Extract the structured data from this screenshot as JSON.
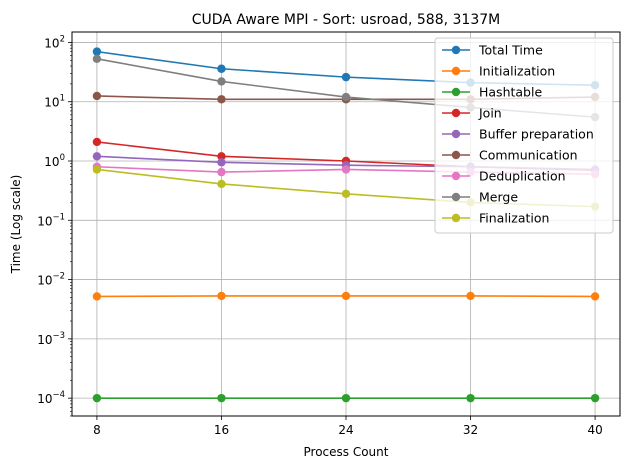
{
  "chart_data": {
    "type": "line",
    "title": "CUDA Aware MPI - Sort: usroad, 588, 3137M",
    "xlabel": "Process Count",
    "ylabel": "Time (Log scale)",
    "yscale": "log",
    "ylim": [
      5e-05,
      150
    ],
    "xlim": [
      6.4,
      41.6
    ],
    "grid": true,
    "legend_position": "top-right",
    "x": [
      8,
      16,
      24,
      32,
      40
    ],
    "x_tick_labels": [
      "8",
      "16",
      "24",
      "32",
      "40"
    ],
    "y_ticks": [
      0.0001,
      0.001,
      0.01,
      0.1,
      1,
      10,
      100
    ],
    "y_tick_labels": [
      {
        "base": "10",
        "exp": "−4"
      },
      {
        "base": "10",
        "exp": "−3"
      },
      {
        "base": "10",
        "exp": "−2"
      },
      {
        "base": "10",
        "exp": "−1"
      },
      {
        "base": "10",
        "exp": "0"
      },
      {
        "base": "10",
        "exp": "1"
      },
      {
        "base": "10",
        "exp": "2"
      }
    ],
    "series": [
      {
        "name": "Total Time",
        "color": "#1f77b4",
        "values": [
          70,
          36,
          26,
          21,
          19
        ]
      },
      {
        "name": "Initialization",
        "color": "#ff7f0e",
        "values": [
          0.0052,
          0.0053,
          0.0053,
          0.0053,
          0.0052
        ]
      },
      {
        "name": "Hashtable",
        "color": "#2ca02c",
        "values": [
          0.0001,
          0.0001,
          0.0001,
          0.0001,
          0.0001
        ]
      },
      {
        "name": "Join",
        "color": "#d62728",
        "values": [
          2.1,
          1.2,
          1.0,
          0.8,
          0.7
        ]
      },
      {
        "name": "Buffer preparation",
        "color": "#9467bd",
        "values": [
          1.2,
          0.95,
          0.85,
          0.8,
          0.72
        ]
      },
      {
        "name": "Communication",
        "color": "#8c564b",
        "values": [
          12.5,
          11,
          11,
          11,
          12
        ]
      },
      {
        "name": "Deduplication",
        "color": "#e377c2",
        "values": [
          0.8,
          0.65,
          0.72,
          0.65,
          0.6
        ]
      },
      {
        "name": "Merge",
        "color": "#7f7f7f",
        "values": [
          53,
          22,
          12,
          8,
          5.5
        ]
      },
      {
        "name": "Finalization",
        "color": "#bcbd22",
        "values": [
          0.72,
          0.41,
          0.28,
          0.2,
          0.17
        ]
      }
    ]
  }
}
